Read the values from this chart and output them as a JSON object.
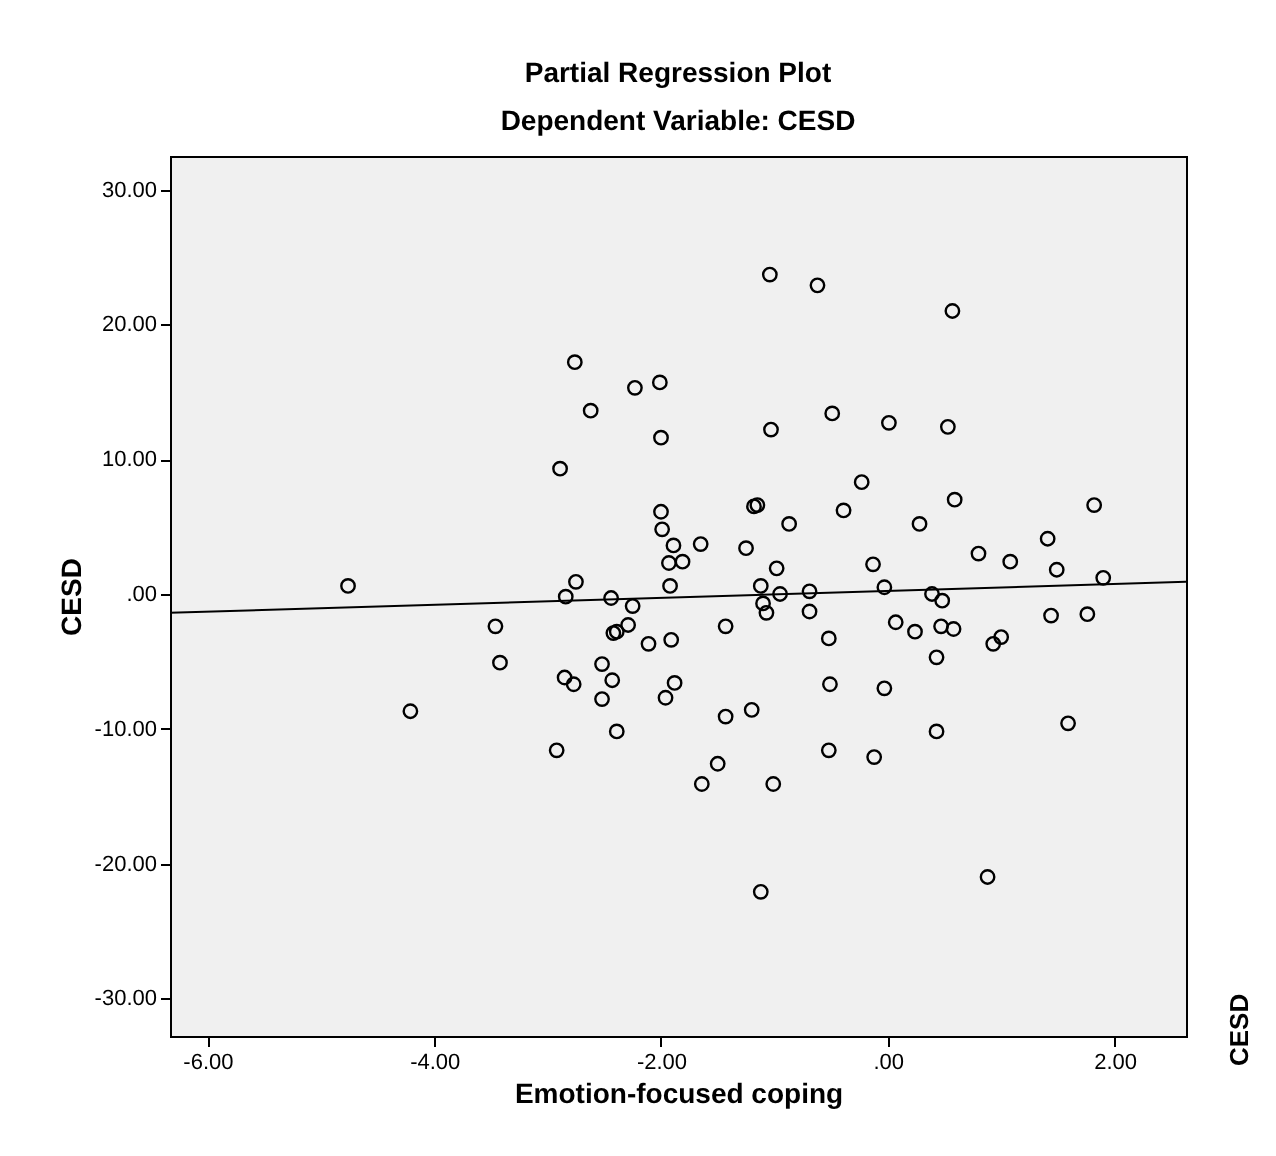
{
  "chart_data": {
    "type": "scatter",
    "title": "Partial Regression Plot",
    "subtitle": "Dependent Variable: CESD",
    "xlabel": "Emotion-focused coping",
    "ylabel": "CESD",
    "annotations": [
      "CESD"
    ],
    "xlim": [
      -6.33,
      2.63
    ],
    "ylim": [
      -32.8,
      32.5
    ],
    "xticks": [
      {
        "value": -6,
        "label": "-6.00"
      },
      {
        "value": -4,
        "label": "-4.00"
      },
      {
        "value": -2,
        "label": "-2.00"
      },
      {
        "value": 0,
        "label": ".00"
      },
      {
        "value": 2,
        "label": "2.00"
      }
    ],
    "yticks": [
      {
        "value": -30,
        "label": "-30.00"
      },
      {
        "value": -20,
        "label": "-20.00"
      },
      {
        "value": -10,
        "label": "-10.00"
      },
      {
        "value": 0,
        "label": ".00"
      },
      {
        "value": 10,
        "label": "10.00"
      },
      {
        "value": 20,
        "label": "20.00"
      },
      {
        "value": 30,
        "label": "30.00"
      }
    ],
    "grid": false,
    "series": [
      {
        "color": "#000000",
        "marker": "circle",
        "x": [
          -2.76,
          -2.23,
          -2.01,
          -2.62,
          -2.0,
          -2.89,
          -2.0,
          -1.99,
          -1.89,
          -1.93,
          -4.76,
          -2.75,
          -1.92,
          -1.04,
          -0.62,
          0.57,
          -1.03,
          -0.49,
          0.01,
          0.53,
          -0.23,
          0.59,
          -1.18,
          -1.15,
          -0.39,
          -0.87,
          0.28,
          1.82,
          -1.65,
          -1.25,
          -1.81,
          -0.13,
          0.8,
          1.08,
          1.41,
          1.49,
          -0.98,
          -1.12,
          -0.95,
          -0.69,
          -0.03,
          0.39,
          0.48,
          1.9,
          -2.84,
          -2.44,
          -2.25,
          -3.46,
          -3.42,
          -2.29,
          -2.39,
          -2.42,
          -2.11,
          -1.91,
          -2.52,
          -2.85,
          -2.77,
          -2.43,
          -1.88,
          -2.52,
          -1.96,
          -4.21,
          -2.39,
          -2.92,
          -1.1,
          -1.07,
          -0.69,
          1.44,
          1.76,
          -1.43,
          -0.52,
          0.07,
          0.24,
          0.47,
          0.58,
          0.43,
          0.93,
          1.0,
          -1.43,
          -1.2,
          -0.51,
          -0.03,
          0.43,
          1.59,
          -0.52,
          -0.12,
          -1.5,
          -1.64,
          -1.01,
          -1.12,
          0.88
        ],
        "values": [
          17.2,
          15.3,
          15.7,
          13.6,
          11.6,
          9.3,
          6.1,
          4.8,
          3.6,
          2.3,
          0.6,
          0.9,
          0.6,
          23.7,
          22.9,
          21.0,
          12.2,
          13.4,
          12.7,
          12.4,
          8.3,
          7.0,
          6.5,
          6.6,
          6.2,
          5.2,
          5.2,
          6.6,
          3.7,
          3.4,
          2.4,
          2.2,
          3.0,
          2.4,
          4.1,
          1.8,
          1.9,
          0.6,
          0.0,
          0.2,
          0.5,
          0.0,
          -0.5,
          1.2,
          -0.2,
          -0.3,
          -0.9,
          -2.4,
          -5.1,
          -2.3,
          -2.8,
          -2.9,
          -3.7,
          -3.4,
          -5.2,
          -6.2,
          -6.7,
          -6.4,
          -6.6,
          -7.8,
          -7.7,
          -8.7,
          -10.2,
          -11.6,
          -0.7,
          -1.4,
          -1.3,
          -1.6,
          -1.5,
          -2.4,
          -3.3,
          -2.1,
          -2.8,
          -2.4,
          -2.6,
          -4.7,
          -3.7,
          -3.2,
          -9.1,
          -8.6,
          -6.7,
          -7.0,
          -10.2,
          -9.6,
          -11.6,
          -12.1,
          -12.6,
          -14.1,
          -14.1,
          -22.1,
          -21.0
        ]
      },
      {
        "type": "line",
        "color": "#000000",
        "x": [
          -6.33,
          2.63
        ],
        "values": [
          -1.4,
          0.9
        ]
      }
    ]
  }
}
